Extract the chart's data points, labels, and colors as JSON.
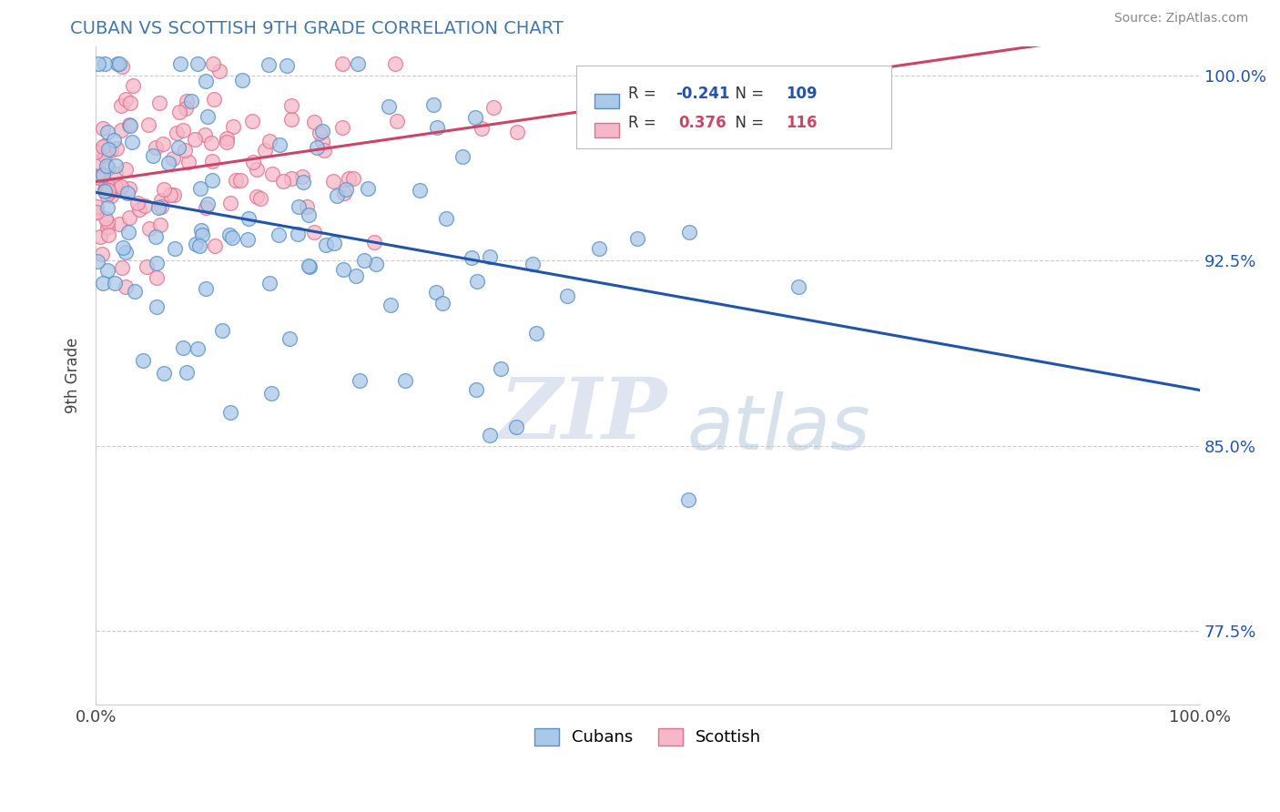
{
  "title": "CUBAN VS SCOTTISH 9TH GRADE CORRELATION CHART",
  "source_text": "Source: ZipAtlas.com",
  "ylabel": "9th Grade",
  "xlim": [
    0.0,
    1.0
  ],
  "ylim": [
    0.745,
    1.012
  ],
  "yticks": [
    0.775,
    0.85,
    0.925,
    1.0
  ],
  "ytick_labels": [
    "77.5%",
    "85.0%",
    "92.5%",
    "100.0%"
  ],
  "cuban_R": -0.241,
  "cuban_N": 109,
  "scottish_R": 0.376,
  "scottish_N": 116,
  "cuban_color": "#aac8e8",
  "scottish_color": "#f5b8c8",
  "cuban_edge_color": "#5590c8",
  "scottish_edge_color": "#e07090",
  "cuban_line_color": "#2255aa",
  "scottish_line_color": "#cc4466",
  "legend_cuban_label": "Cubans",
  "legend_scottish_label": "Scottish",
  "background_color": "#ffffff",
  "grid_color": "#cccccc",
  "title_color": "#4477aa",
  "watermark_zip_color": "#c8d4e8",
  "watermark_atlas_color": "#b0c4d8",
  "right_axis_color": "#2255aa"
}
